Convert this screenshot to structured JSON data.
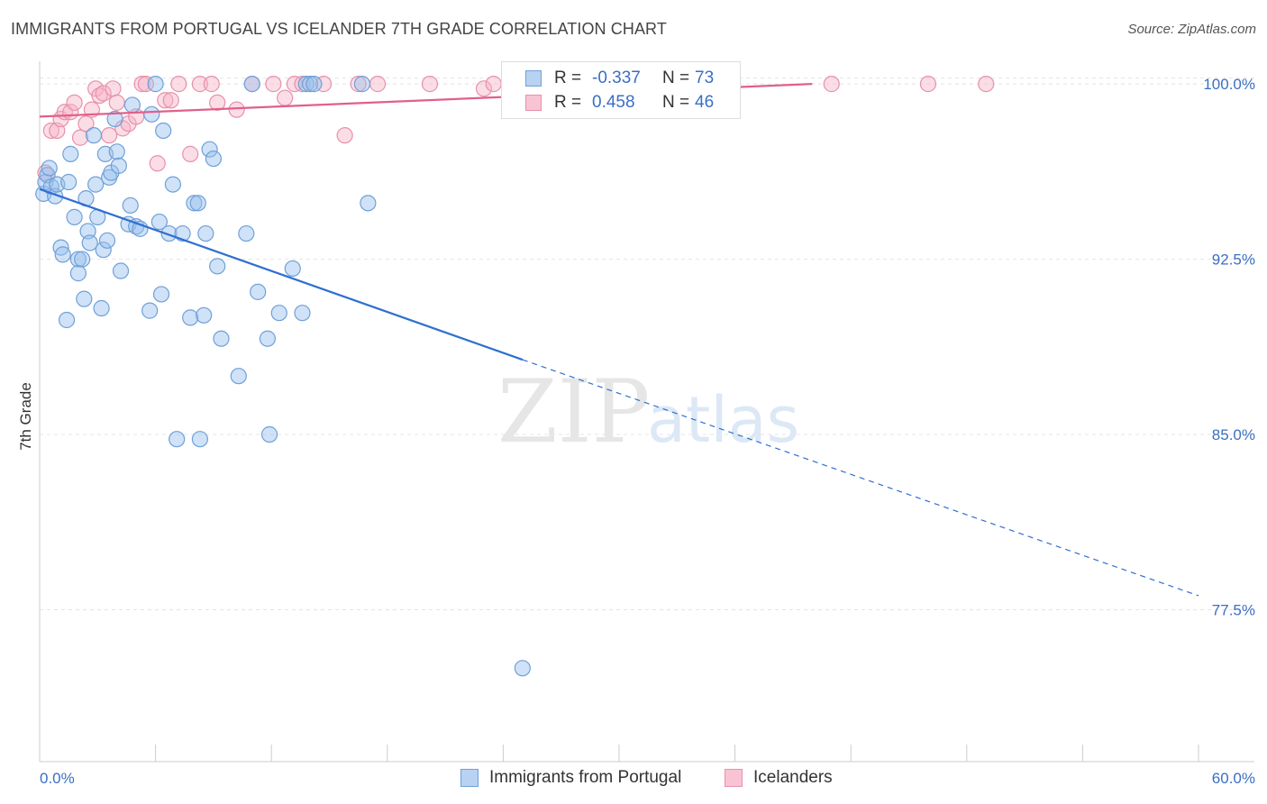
{
  "title": "IMMIGRANTS FROM PORTUGAL VS ICELANDER 7TH GRADE CORRELATION CHART",
  "source": "Source: ZipAtlas.com",
  "watermark": {
    "zip": "ZIP",
    "atlas": "atlas"
  },
  "legend": {
    "r_label": "R =",
    "n_label": "N =",
    "rows": [
      {
        "r": "-0.337",
        "n": "73",
        "swatch_fill": "#b8d2f2",
        "swatch_stroke": "#6fa0d8"
      },
      {
        "r": "0.458",
        "n": "46",
        "swatch_fill": "#f8c4d4",
        "swatch_stroke": "#e890ac"
      }
    ]
  },
  "bottom_legend": [
    {
      "label": "Immigrants from Portugal",
      "swatch_fill": "#b8d2f2",
      "swatch_stroke": "#6fa0d8"
    },
    {
      "label": "Icelanders",
      "swatch_fill": "#f8c4d4",
      "swatch_stroke": "#e890ac"
    }
  ],
  "colors": {
    "blue_point_fill": "rgba(150,190,238,0.45)",
    "blue_point_stroke": "#6fa0d8",
    "blue_line": "#2f6fd0",
    "pink_point_fill": "rgba(246,180,200,0.45)",
    "pink_point_stroke": "#e890ac",
    "pink_line": "#e0608a",
    "tick_text": "#3a6fc4",
    "grid": "#e4e4e4"
  },
  "chart_data": {
    "type": "scatter",
    "title": "IMMIGRANTS FROM PORTUGAL VS ICELANDER 7TH GRADE CORRELATION CHART",
    "xlabel": "",
    "ylabel": "7th Grade",
    "xlim": [
      0,
      60
    ],
    "ylim": [
      71.0,
      101.2
    ],
    "x_tick_labels": [
      {
        "value": 0,
        "label": "0.0%"
      },
      {
        "value": 60,
        "label": "60.0%"
      }
    ],
    "y_tick_labels": [
      {
        "value": 100.0,
        "label": "100.0%"
      },
      {
        "value": 92.5,
        "label": "92.5%"
      },
      {
        "value": 85.0,
        "label": "85.0%"
      },
      {
        "value": 77.5,
        "label": "77.5%"
      }
    ],
    "grid": "horizontal dashed",
    "legend_position": "top-center",
    "series": [
      {
        "name": "Immigrants from Portugal",
        "color": "blue",
        "trend": {
          "x_solid": [
            0,
            25
          ],
          "y_solid": [
            95.5,
            88.2
          ],
          "x_dashed": [
            25,
            60
          ],
          "y_dashed": [
            88.2,
            78.1
          ]
        },
        "points": [
          [
            0.2,
            95.3
          ],
          [
            0.3,
            95.8
          ],
          [
            0.4,
            96.1
          ],
          [
            0.5,
            96.4
          ],
          [
            0.6,
            95.6
          ],
          [
            0.8,
            95.2
          ],
          [
            0.9,
            95.7
          ],
          [
            1.1,
            93.0
          ],
          [
            1.2,
            92.7
          ],
          [
            1.4,
            89.9
          ],
          [
            1.5,
            95.8
          ],
          [
            1.6,
            97.0
          ],
          [
            1.8,
            94.3
          ],
          [
            2.0,
            92.5
          ],
          [
            2.0,
            91.9
          ],
          [
            2.2,
            92.5
          ],
          [
            2.3,
            90.8
          ],
          [
            2.4,
            95.1
          ],
          [
            2.5,
            93.7
          ],
          [
            2.6,
            93.2
          ],
          [
            2.8,
            97.8
          ],
          [
            2.9,
            95.7
          ],
          [
            3.0,
            94.3
          ],
          [
            3.2,
            90.4
          ],
          [
            3.3,
            92.9
          ],
          [
            3.4,
            97.0
          ],
          [
            3.5,
            93.3
          ],
          [
            3.6,
            96.0
          ],
          [
            3.7,
            96.2
          ],
          [
            3.9,
            98.5
          ],
          [
            4.0,
            97.1
          ],
          [
            4.1,
            96.5
          ],
          [
            4.2,
            92.0
          ],
          [
            4.6,
            94.0
          ],
          [
            4.7,
            94.8
          ],
          [
            4.8,
            99.1
          ],
          [
            5.0,
            93.9
          ],
          [
            5.2,
            93.8
          ],
          [
            5.7,
            90.3
          ],
          [
            5.8,
            98.7
          ],
          [
            6.0,
            100.0
          ],
          [
            6.2,
            94.1
          ],
          [
            6.3,
            91.0
          ],
          [
            6.4,
            98.0
          ],
          [
            6.7,
            93.6
          ],
          [
            6.9,
            95.7
          ],
          [
            7.1,
            84.8
          ],
          [
            7.4,
            93.6
          ],
          [
            7.8,
            90.0
          ],
          [
            8.0,
            94.9
          ],
          [
            8.2,
            94.9
          ],
          [
            8.3,
            84.8
          ],
          [
            8.5,
            90.1
          ],
          [
            8.6,
            93.6
          ],
          [
            8.8,
            97.2
          ],
          [
            9.0,
            96.8
          ],
          [
            9.2,
            92.2
          ],
          [
            9.4,
            89.1
          ],
          [
            10.3,
            87.5
          ],
          [
            10.7,
            93.6
          ],
          [
            11.0,
            100.0
          ],
          [
            11.3,
            91.1
          ],
          [
            11.8,
            89.1
          ],
          [
            11.9,
            85.0
          ],
          [
            12.4,
            90.2
          ],
          [
            13.1,
            92.1
          ],
          [
            13.6,
            90.2
          ],
          [
            13.8,
            100.0
          ],
          [
            14.0,
            100.0
          ],
          [
            14.2,
            100.0
          ],
          [
            16.7,
            100.0
          ],
          [
            17.0,
            94.9
          ],
          [
            25.0,
            75.0
          ]
        ]
      },
      {
        "name": "Icelanders",
        "color": "pink",
        "trend": {
          "x": [
            0.0,
            40.0
          ],
          "y": [
            98.6,
            100.0
          ]
        },
        "points": [
          [
            0.3,
            96.2
          ],
          [
            0.6,
            98.0
          ],
          [
            0.9,
            98.0
          ],
          [
            1.1,
            98.5
          ],
          [
            1.3,
            98.8
          ],
          [
            1.6,
            98.8
          ],
          [
            1.8,
            99.2
          ],
          [
            2.1,
            97.7
          ],
          [
            2.4,
            98.3
          ],
          [
            2.7,
            98.9
          ],
          [
            2.9,
            99.8
          ],
          [
            3.1,
            99.5
          ],
          [
            3.3,
            99.6
          ],
          [
            3.6,
            97.8
          ],
          [
            3.8,
            99.8
          ],
          [
            4.0,
            99.2
          ],
          [
            4.3,
            98.1
          ],
          [
            4.6,
            98.3
          ],
          [
            5.0,
            98.6
          ],
          [
            5.3,
            100.0
          ],
          [
            5.5,
            100.0
          ],
          [
            6.1,
            96.6
          ],
          [
            6.5,
            99.3
          ],
          [
            6.8,
            99.3
          ],
          [
            7.2,
            100.0
          ],
          [
            7.8,
            97.0
          ],
          [
            8.3,
            100.0
          ],
          [
            8.9,
            100.0
          ],
          [
            9.2,
            99.2
          ],
          [
            10.2,
            98.9
          ],
          [
            11.0,
            100.0
          ],
          [
            12.1,
            100.0
          ],
          [
            12.7,
            99.4
          ],
          [
            13.2,
            100.0
          ],
          [
            13.6,
            100.0
          ],
          [
            14.7,
            100.0
          ],
          [
            15.8,
            97.8
          ],
          [
            16.5,
            100.0
          ],
          [
            17.5,
            100.0
          ],
          [
            20.2,
            100.0
          ],
          [
            23.0,
            99.8
          ],
          [
            23.5,
            100.0
          ],
          [
            33.0,
            100.0
          ],
          [
            41.0,
            100.0
          ],
          [
            46.0,
            100.0
          ],
          [
            49.0,
            100.0
          ]
        ]
      }
    ]
  }
}
